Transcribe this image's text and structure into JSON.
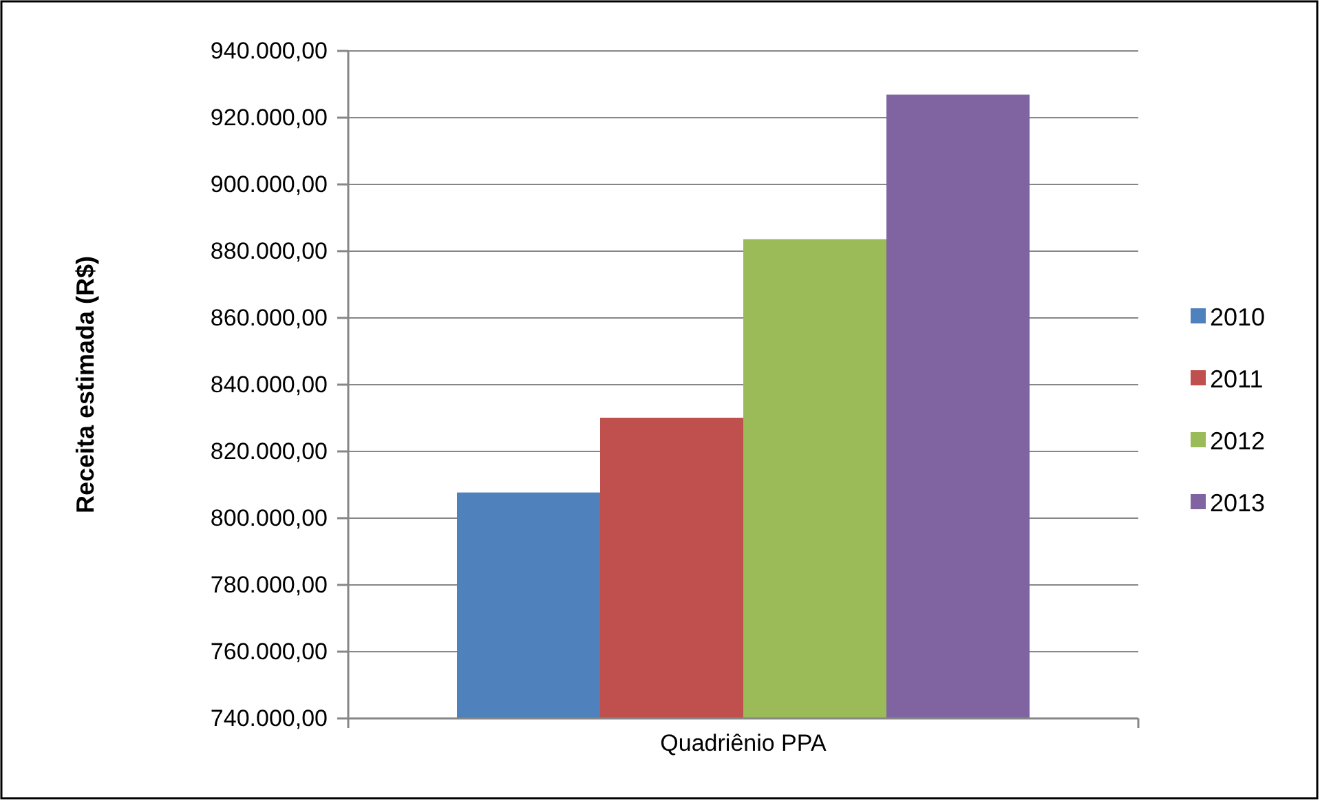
{
  "chart_data": {
    "type": "bar",
    "ylabel": "Receita estimada (R$)",
    "categories": [
      "Quadriênio PPA"
    ],
    "series": [
      {
        "name": "2010",
        "color": "#4f81bd",
        "values": [
          807700
        ]
      },
      {
        "name": "2011",
        "color": "#c0504d",
        "values": [
          830100
        ]
      },
      {
        "name": "2012",
        "color": "#9bbb59",
        "values": [
          883600
        ]
      },
      {
        "name": "2013",
        "color": "#8064a2",
        "values": [
          926900
        ]
      }
    ],
    "ylim": [
      740000,
      940000
    ],
    "yticks": [
      {
        "value": 740000,
        "label": "740.000,00"
      },
      {
        "value": 760000,
        "label": "760.000,00"
      },
      {
        "value": 780000,
        "label": "780.000,00"
      },
      {
        "value": 800000,
        "label": "800.000,00"
      },
      {
        "value": 820000,
        "label": "820.000,00"
      },
      {
        "value": 840000,
        "label": "840.000,00"
      },
      {
        "value": 860000,
        "label": "860.000,00"
      },
      {
        "value": 880000,
        "label": "880.000,00"
      },
      {
        "value": 900000,
        "label": "900.000,00"
      },
      {
        "value": 920000,
        "label": "920.000,00"
      },
      {
        "value": 940000,
        "label": "940.000,00"
      }
    ],
    "grid": "y",
    "legend": "right"
  }
}
